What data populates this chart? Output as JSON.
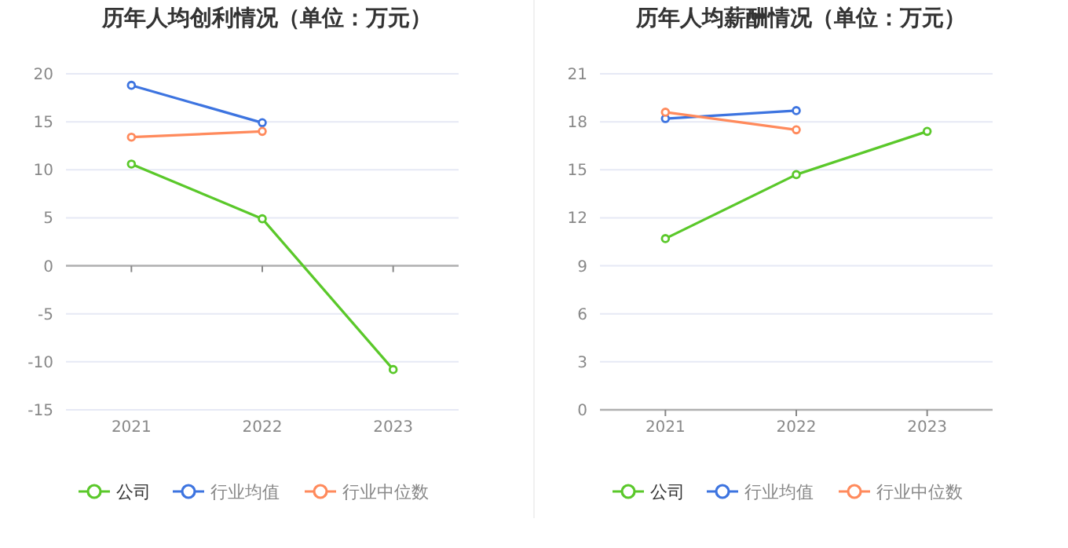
{
  "chart_data": [
    {
      "type": "line",
      "title": "历年人均创利情况（单位：万元）",
      "categories": [
        "2021",
        "2022",
        "2023"
      ],
      "ylim": [
        -15,
        20
      ],
      "yticks": [
        -15,
        -10,
        -5,
        0,
        5,
        10,
        15,
        20
      ],
      "grid": "y",
      "legend": "bottom",
      "marker": "circle",
      "series": [
        {
          "name": "公司",
          "color": "#5ac82a",
          "values": [
            10.6,
            4.9,
            -10.8
          ]
        },
        {
          "name": "行业均值",
          "color": "#3d74e0",
          "values": [
            18.8,
            14.9,
            null
          ]
        },
        {
          "name": "行业中位数",
          "color": "#ff8a5c",
          "values": [
            13.4,
            14.0,
            null
          ]
        }
      ]
    },
    {
      "type": "line",
      "title": "历年人均薪酬情况（单位：万元）",
      "categories": [
        "2021",
        "2022",
        "2023"
      ],
      "ylim": [
        0,
        21
      ],
      "yticks": [
        0,
        3,
        6,
        9,
        12,
        15,
        18,
        21
      ],
      "grid": "y",
      "legend": "bottom",
      "marker": "circle",
      "series": [
        {
          "name": "公司",
          "color": "#5ac82a",
          "values": [
            10.7,
            14.7,
            17.4
          ]
        },
        {
          "name": "行业均值",
          "color": "#3d74e0",
          "values": [
            18.2,
            18.7,
            null
          ]
        },
        {
          "name": "行业中位数",
          "color": "#ff8a5c",
          "values": [
            18.6,
            17.5,
            null
          ]
        }
      ]
    }
  ]
}
